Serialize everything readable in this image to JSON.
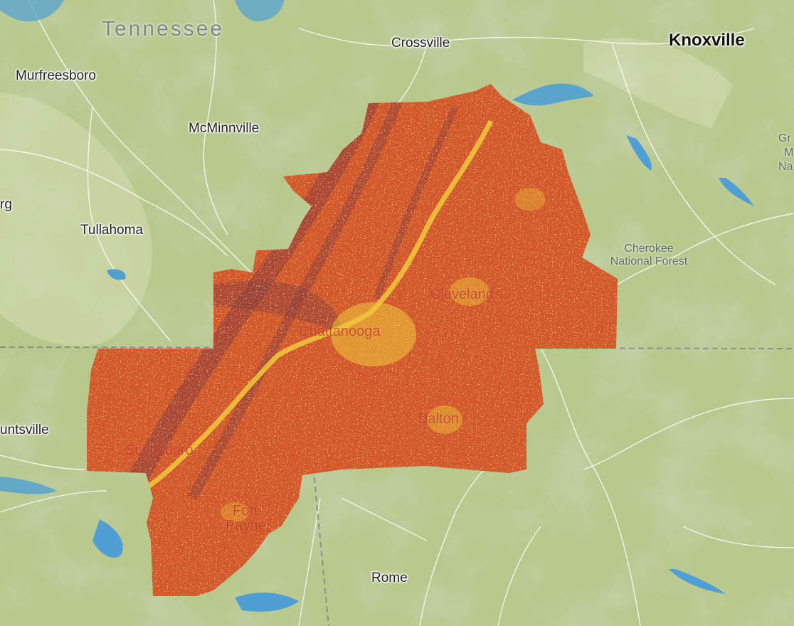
{
  "map": {
    "state_label": "Tennessee",
    "colors": {
      "base": "#b9c98e",
      "relief_dark": "#8fa36c",
      "relief_light": "#d8dfb6",
      "water": "#4f9fd4",
      "roads": "#ffffff",
      "border": "#7f8b86",
      "overlay_main": "#d2562a",
      "overlay_dark": "#8a3b3e",
      "overlay_hot": "#f0c93a"
    },
    "cities": [
      {
        "id": "knoxville",
        "name": "Knoxville"
      },
      {
        "id": "crossville",
        "name": "Crossville"
      },
      {
        "id": "murfreesboro",
        "name": "Murfreesboro"
      },
      {
        "id": "mcminnville",
        "name": "McMinnville"
      },
      {
        "id": "tullahoma",
        "name": "Tullahoma"
      },
      {
        "id": "rome",
        "name": "Rome"
      },
      {
        "id": "huntsville",
        "name": "untsville"
      },
      {
        "id": "edge-rg",
        "name": "rg"
      },
      {
        "id": "edge-gr",
        "name": "Gr"
      },
      {
        "id": "edge-m",
        "name": "M"
      },
      {
        "id": "edge-na",
        "name": "Na"
      }
    ],
    "forest": {
      "line1": "Cherokee",
      "line2": "National Forest"
    },
    "overlay_cities": [
      {
        "id": "chattanooga",
        "name": "Chattanooga"
      },
      {
        "id": "cleveland",
        "name": "Cleveland"
      },
      {
        "id": "dalton",
        "name": "Dalton"
      },
      {
        "id": "scottsboro",
        "name": "Scottsboro"
      },
      {
        "id": "fort-payne-1",
        "name": "Fort"
      },
      {
        "id": "fort-payne-2",
        "name": "Payne"
      }
    ]
  }
}
